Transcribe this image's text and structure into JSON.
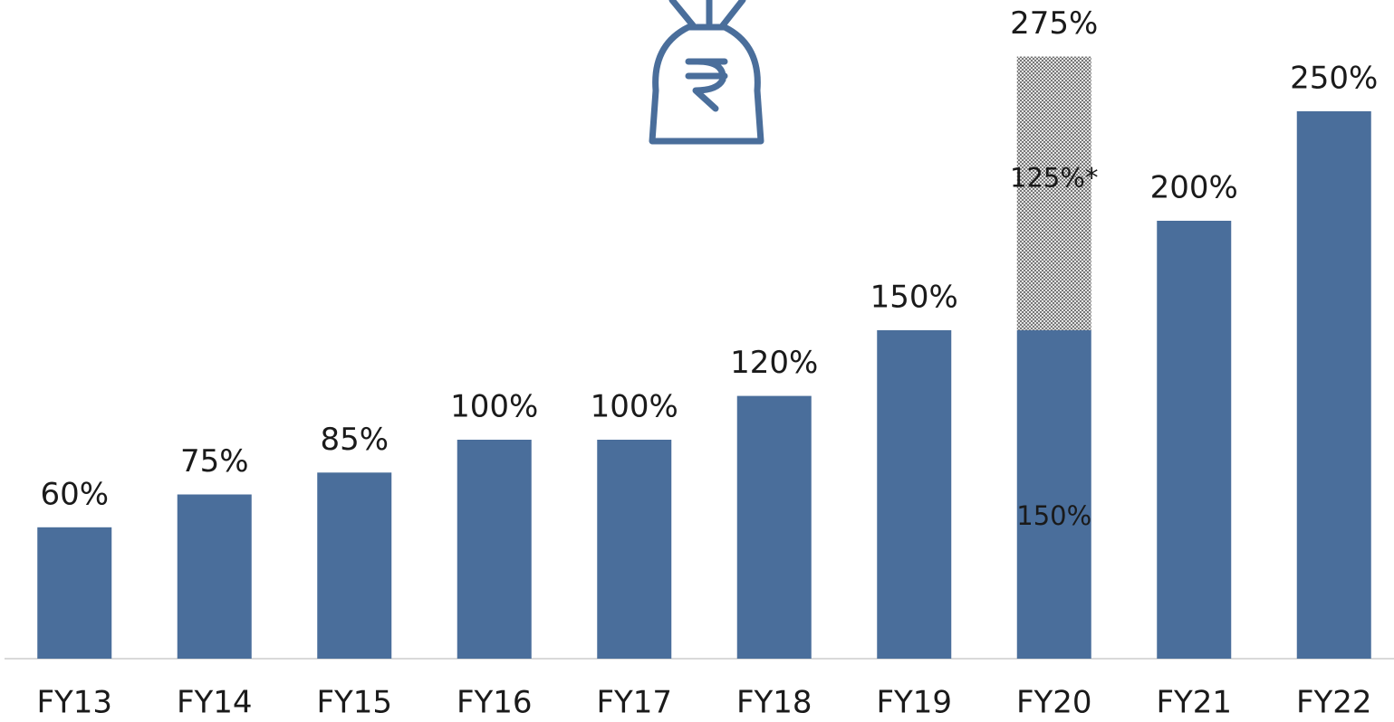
{
  "chart_data": {
    "type": "stacked-bar",
    "categories": [
      "FY13",
      "FY14",
      "FY15",
      "FY16",
      "FY17",
      "FY18",
      "FY19",
      "FY20",
      "FY21",
      "FY22"
    ],
    "series": [
      {
        "color": "#4a6e9b",
        "values": [
          60,
          75,
          85,
          100,
          100,
          120,
          150,
          150,
          200,
          250
        ],
        "value_labels": [
          "60%",
          "75%",
          "85%",
          "100%",
          "100%",
          "120%",
          "150%",
          "150%",
          "200%",
          "250%"
        ]
      },
      {
        "color": "#9a9a9a",
        "pattern": "hatched",
        "values": [
          null,
          null,
          null,
          null,
          null,
          null,
          null,
          125,
          null,
          null
        ],
        "value_labels": [
          null,
          null,
          null,
          null,
          null,
          null,
          null,
          "125%*",
          null,
          null
        ]
      }
    ],
    "annotations": [
      {
        "text": "275%",
        "category": "FY20"
      }
    ],
    "ylim": [
      0,
      300
    ]
  }
}
